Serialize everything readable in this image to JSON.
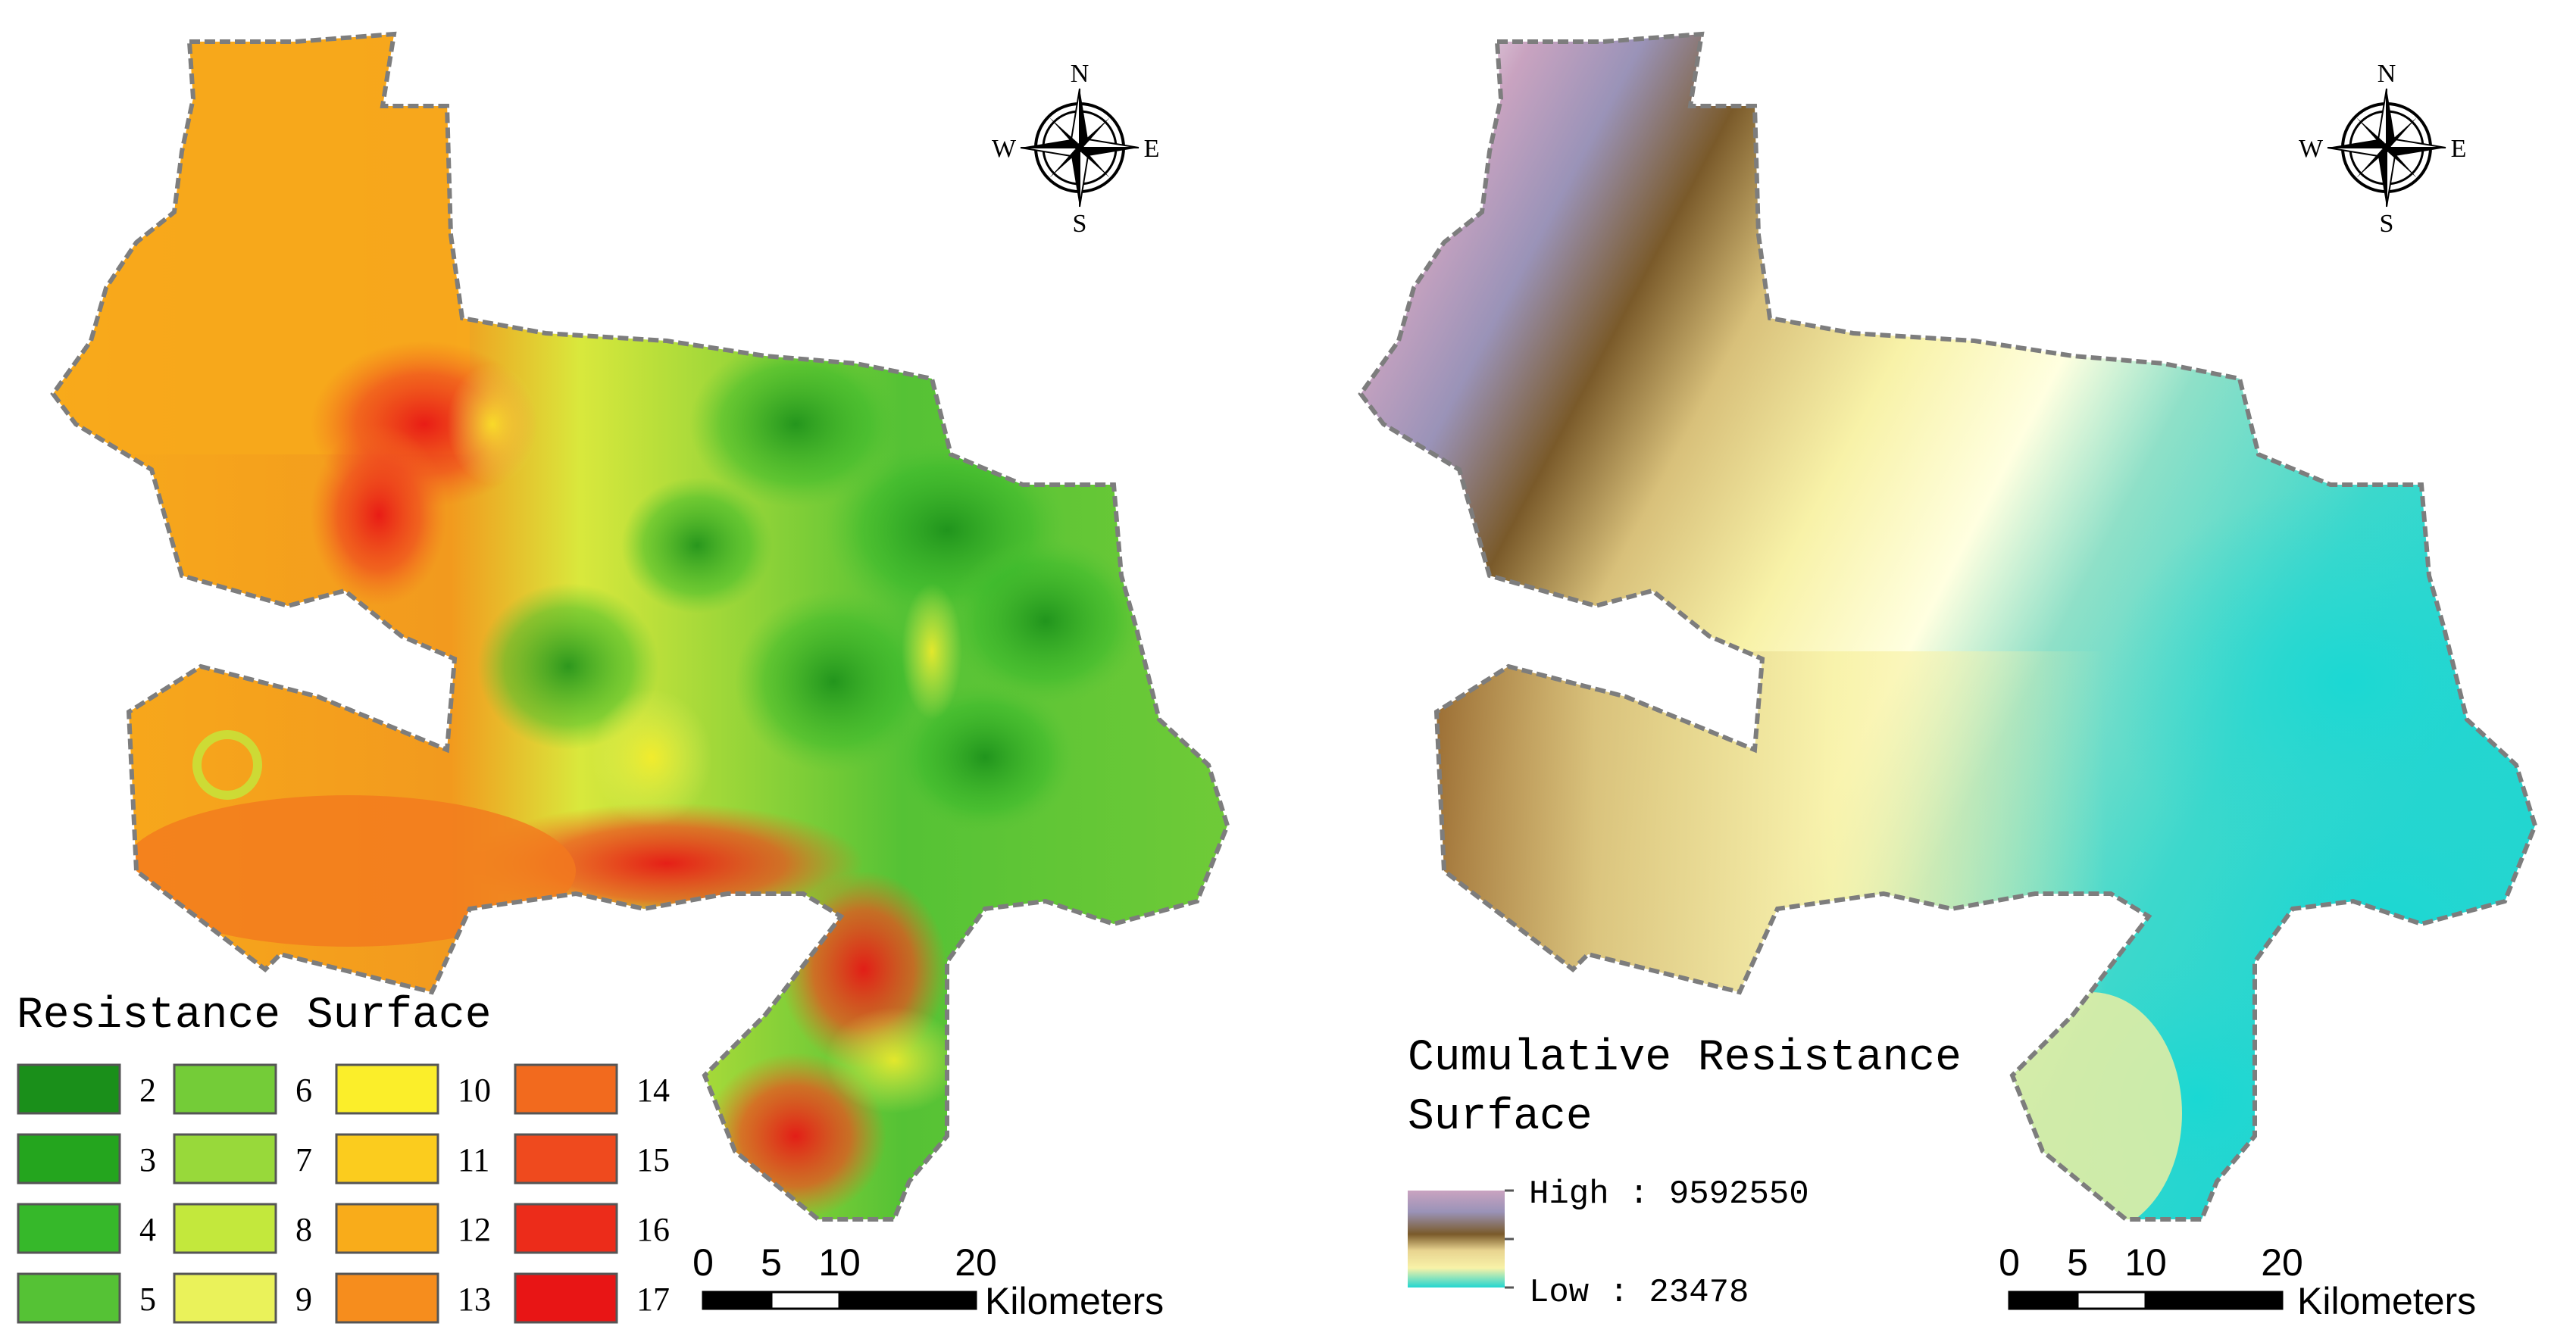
{
  "left_map": {
    "compass": {
      "n": "N",
      "e": "E",
      "s": "S",
      "w": "W"
    },
    "legend": {
      "title": "Resistance Surface",
      "classes": [
        {
          "label": "2",
          "color": "#1a8f1a"
        },
        {
          "label": "3",
          "color": "#24a51e"
        },
        {
          "label": "4",
          "color": "#36b82a"
        },
        {
          "label": "5",
          "color": "#55c235"
        },
        {
          "label": "6",
          "color": "#74cc38"
        },
        {
          "label": "7",
          "color": "#98d93a"
        },
        {
          "label": "8",
          "color": "#c3e83c"
        },
        {
          "label": "9",
          "color": "#eaf25a"
        },
        {
          "label": "10",
          "color": "#fbee2a"
        },
        {
          "label": "11",
          "color": "#fbcc1e"
        },
        {
          "label": "12",
          "color": "#f9ac1a"
        },
        {
          "label": "13",
          "color": "#f68d1d"
        },
        {
          "label": "14",
          "color": "#f26a1e"
        },
        {
          "label": "15",
          "color": "#ef4a1e"
        },
        {
          "label": "16",
          "color": "#ec2c1a"
        },
        {
          "label": "17",
          "color": "#e81515"
        }
      ]
    },
    "scale_bar": {
      "ticks": [
        "0",
        "5",
        "10",
        "20"
      ],
      "unit": "Kilometers"
    }
  },
  "right_map": {
    "compass": {
      "n": "N",
      "e": "E",
      "s": "S",
      "w": "W"
    },
    "legend": {
      "title_line1": "Cumulative Resistance",
      "title_line2": "Surface",
      "high_label": "High : 9592550",
      "low_label": "Low : 23478",
      "ramp_colors": [
        "#c9a3c0",
        "#9a93b8",
        "#7a5a2a",
        "#e8d490",
        "#f8f2a8",
        "#22d6d0"
      ]
    },
    "scale_bar": {
      "ticks": [
        "0",
        "5",
        "10",
        "20"
      ],
      "unit": "Kilometers"
    }
  }
}
